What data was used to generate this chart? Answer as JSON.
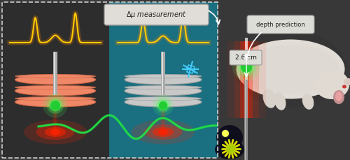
{
  "fig_width": 5.0,
  "fig_height": 2.29,
  "dpi": 100,
  "bg_color": "#3a3a3a",
  "left_panel_bg": "#2d2d2d",
  "right_panel_bg": "#1a7080",
  "far_right_bg": "#404040",
  "wave_color": "#ffcc00",
  "wave_glow": "#ff8800",
  "signal_color": "#22dd44",
  "signal_glow": "#00ff44",
  "laser_red": "#ff2200",
  "np_green": "#22cc33",
  "np_glow": "#44ff55",
  "snowflake_color": "#44ccff",
  "tissue_fresh": "#f08868",
  "tissue_frozen": "#c8c8c8",
  "tissue_fresh_edge": "#cc6644",
  "tissue_frozen_edge": "#999999",
  "ann_box_bg": "#e0ddd8",
  "depth_box_bg": "#ddddd8",
  "meas_box_bg": "#ddddd8",
  "probe_gray": "#aaaaaa",
  "probe_light": "#dddddd",
  "annotation_text": "Δμ measurement",
  "depth_text": "depth prediction",
  "meas_text": "2.6 cm",
  "dashed_color": "#cccccc"
}
